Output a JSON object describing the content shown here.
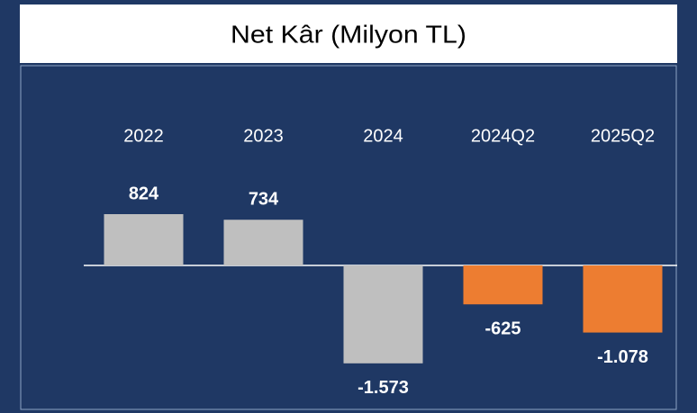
{
  "chart_data": {
    "type": "bar",
    "title": "Net Kâr (Milyon TL)",
    "categories": [
      "2022",
      "2023",
      "2024",
      "2024Q2",
      "2025Q2"
    ],
    "values": [
      824,
      734,
      -1573,
      -625,
      -1078
    ],
    "value_labels": [
      "824",
      "734",
      "-1.573",
      "-625",
      "-1.078"
    ],
    "colors": [
      "#bfbfbf",
      "#bfbfbf",
      "#bfbfbf",
      "#ed7d31",
      "#ed7d31"
    ]
  }
}
